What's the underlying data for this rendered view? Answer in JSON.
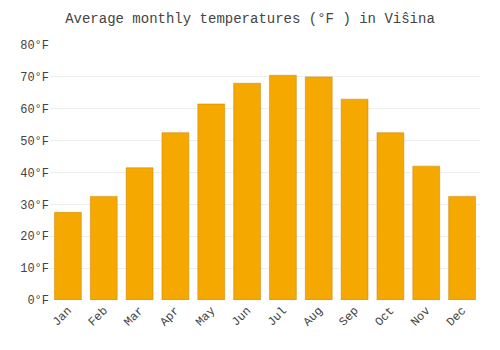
{
  "chart_data": {
    "type": "bar",
    "title": "Average monthly temperatures (°F ) in Viŝina",
    "categories": [
      "Jan",
      "Feb",
      "Mar",
      "Apr",
      "May",
      "Jun",
      "Jul",
      "Aug",
      "Sep",
      "Oct",
      "Nov",
      "Dec"
    ],
    "values": [
      27.5,
      32.5,
      41.5,
      52.5,
      61.5,
      68.0,
      70.5,
      70.0,
      63.0,
      52.5,
      42.0,
      32.5
    ],
    "color": "#F5A800",
    "ylim": [
      0,
      80
    ],
    "yticks": [
      {
        "value": 0,
        "label": "0°F"
      },
      {
        "value": 10,
        "label": "10°F"
      },
      {
        "value": 20,
        "label": "20°F"
      },
      {
        "value": 30,
        "label": "30°F"
      },
      {
        "value": 40,
        "label": "40°F"
      },
      {
        "value": 50,
        "label": "50°F"
      },
      {
        "value": 60,
        "label": "60°F"
      },
      {
        "value": 70,
        "label": "70°F"
      },
      {
        "value": 80,
        "label": "80°F"
      }
    ],
    "grid": true
  }
}
